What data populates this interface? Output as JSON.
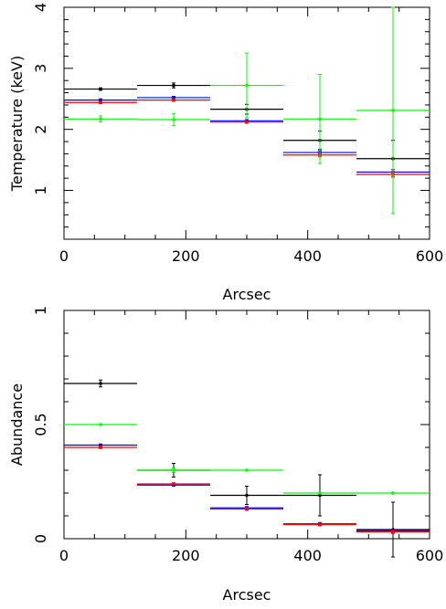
{
  "colors": {
    "black": "#000000",
    "blue": "#0000ff",
    "red": "#ff0000",
    "green": "#00ff00"
  },
  "chart_data": [
    {
      "type": "scatter",
      "xlabel": "Arcsec",
      "ylabel": "Temperature (keV)",
      "xlim": [
        0,
        600
      ],
      "ylim": [
        0.2,
        4
      ],
      "xticks": [
        0,
        200,
        400,
        600
      ],
      "yticks": [
        1,
        2,
        3,
        4
      ],
      "series": [
        {
          "color": "black",
          "points": [
            {
              "x": 60,
              "xerr": 60,
              "y": 2.66,
              "yerr": 0.02
            },
            {
              "x": 180,
              "xerr": 60,
              "y": 2.72,
              "yerr": 0.04
            },
            {
              "x": 300,
              "xerr": 60,
              "y": 2.33,
              "yerr": 0.08
            },
            {
              "x": 420,
              "xerr": 60,
              "y": 1.82,
              "yerr": 0.15
            },
            {
              "x": 540,
              "xerr": 60,
              "y": 1.52,
              "yerr": 0.3
            }
          ]
        },
        {
          "color": "blue",
          "points": [
            {
              "x": 60,
              "xerr": 60,
              "y": 2.48,
              "yerr": 0.02
            },
            {
              "x": 180,
              "xerr": 60,
              "y": 2.52,
              "yerr": 0.02
            },
            {
              "x": 300,
              "xerr": 60,
              "y": 2.14,
              "yerr": 0.02
            },
            {
              "x": 420,
              "xerr": 60,
              "y": 1.62,
              "yerr": 0.03
            },
            {
              "x": 540,
              "xerr": 60,
              "y": 1.3,
              "yerr": 0.04
            }
          ]
        },
        {
          "color": "red",
          "points": [
            {
              "x": 60,
              "xerr": 60,
              "y": 2.44,
              "yerr": 0.02
            },
            {
              "x": 180,
              "xerr": 60,
              "y": 2.48,
              "yerr": 0.02
            },
            {
              "x": 300,
              "xerr": 60,
              "y": 2.12,
              "yerr": 0.02
            },
            {
              "x": 420,
              "xerr": 60,
              "y": 1.58,
              "yerr": 0.03
            },
            {
              "x": 540,
              "xerr": 60,
              "y": 1.26,
              "yerr": 0.04
            }
          ]
        },
        {
          "color": "green",
          "points": [
            {
              "x": 60,
              "xerr": 60,
              "y": 2.17,
              "yerr": 0.05
            },
            {
              "x": 180,
              "xerr": 60,
              "y": 2.16,
              "yerr": 0.1
            },
            {
              "x": 300,
              "xerr": 60,
              "y": 2.72,
              "yerr": 0.53
            },
            {
              "x": 420,
              "xerr": 60,
              "y": 2.17,
              "yerr": 0.73
            },
            {
              "x": 540,
              "xerr": 60,
              "y": 2.31,
              "yerr": 1.69
            }
          ]
        }
      ]
    },
    {
      "type": "scatter",
      "xlabel": "Arcsec",
      "ylabel": "Abundance",
      "xlim": [
        0,
        600
      ],
      "ylim": [
        0,
        1
      ],
      "xticks": [
        0,
        200,
        400,
        600
      ],
      "yticks": [
        0,
        0.5,
        1
      ],
      "series": [
        {
          "color": "black",
          "points": [
            {
              "x": 60,
              "xerr": 60,
              "y": 0.68,
              "yerr": 0.015
            },
            {
              "x": 180,
              "xerr": 60,
              "y": 0.3,
              "yerr": 0.03
            },
            {
              "x": 300,
              "xerr": 60,
              "y": 0.19,
              "yerr": 0.04
            },
            {
              "x": 420,
              "xerr": 60,
              "y": 0.19,
              "yerr": 0.09
            },
            {
              "x": 540,
              "xerr": 60,
              "y": 0.04,
              "yerr": 0.12
            }
          ]
        },
        {
          "color": "blue",
          "points": [
            {
              "x": 60,
              "xerr": 60,
              "y": 0.41,
              "yerr": 0.005
            },
            {
              "x": 180,
              "xerr": 60,
              "y": 0.235,
              "yerr": 0.005
            },
            {
              "x": 300,
              "xerr": 60,
              "y": 0.135,
              "yerr": 0.006
            },
            {
              "x": 420,
              "xerr": 60,
              "y": 0.065,
              "yerr": 0.006
            },
            {
              "x": 540,
              "xerr": 60,
              "y": 0.035,
              "yerr": 0.007
            }
          ]
        },
        {
          "color": "red",
          "points": [
            {
              "x": 60,
              "xerr": 60,
              "y": 0.4,
              "yerr": 0.005
            },
            {
              "x": 180,
              "xerr": 60,
              "y": 0.24,
              "yerr": 0.005
            },
            {
              "x": 300,
              "xerr": 60,
              "y": 0.13,
              "yerr": 0.006
            },
            {
              "x": 420,
              "xerr": 60,
              "y": 0.062,
              "yerr": 0.006
            },
            {
              "x": 540,
              "xerr": 60,
              "y": 0.03,
              "yerr": 0.007
            }
          ]
        },
        {
          "color": "green",
          "points": [
            {
              "x": 60,
              "xerr": 60,
              "y": 0.5,
              "yerr": 0
            },
            {
              "x": 180,
              "xerr": 60,
              "y": 0.3,
              "yerr": 0.01
            },
            {
              "x": 300,
              "xerr": 60,
              "y": 0.3,
              "yerr": 0
            },
            {
              "x": 420,
              "xerr": 60,
              "y": 0.2,
              "yerr": 0
            },
            {
              "x": 540,
              "xerr": 60,
              "y": 0.2,
              "yerr": 0
            }
          ]
        }
      ]
    }
  ]
}
